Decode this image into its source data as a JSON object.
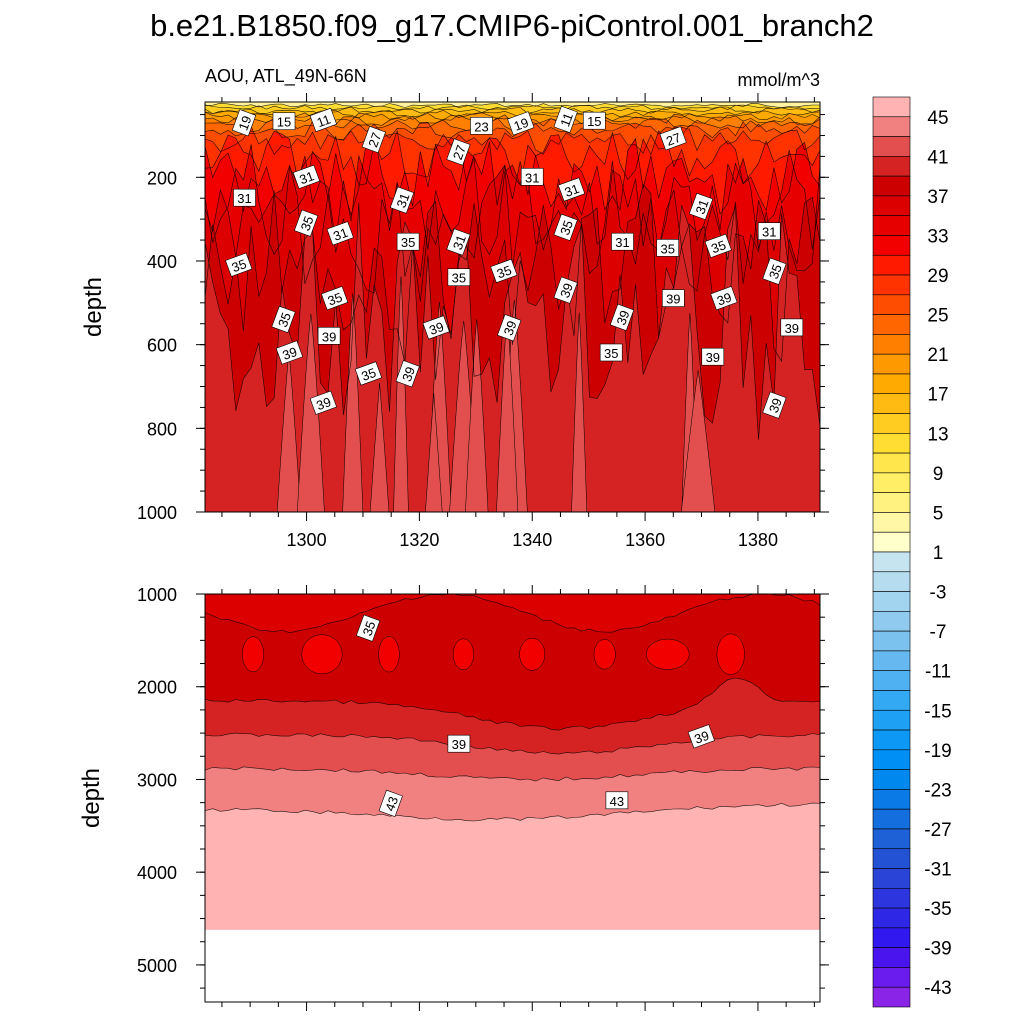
{
  "chart_data": [
    {
      "type": "heatmap",
      "title": "b.e21.B1850.f09_g17.CMIP6-piControl.001_branch2",
      "left_label": "AOU, ATL_49N-66N",
      "right_label": "mmol/m^3",
      "ylabel": "depth",
      "xlim": [
        1282,
        1391
      ],
      "ylim": [
        1000,
        20
      ],
      "x_ticks": [
        1300,
        1320,
        1340,
        1360,
        1380
      ],
      "x_tick_labels": [
        "1300",
        "1320",
        "1340",
        "1360",
        "1380"
      ],
      "y_ticks": [
        200,
        400,
        600,
        800,
        1000
      ],
      "y_tick_labels": [
        "200",
        "400",
        "600",
        "800",
        "1000"
      ],
      "contour_labels": [
        {
          "x": 1289,
          "y": 70,
          "text": "19"
        },
        {
          "x": 1296,
          "y": 67,
          "text": "15"
        },
        {
          "x": 1303,
          "y": 64,
          "text": "11"
        },
        {
          "x": 1312,
          "y": 110,
          "text": "27"
        },
        {
          "x": 1331,
          "y": 78,
          "text": "23"
        },
        {
          "x": 1338,
          "y": 72,
          "text": "19"
        },
        {
          "x": 1346,
          "y": 62,
          "text": "11"
        },
        {
          "x": 1351,
          "y": 66,
          "text": "15"
        },
        {
          "x": 1365,
          "y": 108,
          "text": "27"
        },
        {
          "x": 1327,
          "y": 140,
          "text": "27"
        },
        {
          "x": 1289,
          "y": 250,
          "text": "31"
        },
        {
          "x": 1300,
          "y": 200,
          "text": "31"
        },
        {
          "x": 1317,
          "y": 255,
          "text": "31"
        },
        {
          "x": 1340,
          "y": 200,
          "text": "31"
        },
        {
          "x": 1347,
          "y": 230,
          "text": "31"
        },
        {
          "x": 1370,
          "y": 270,
          "text": "31"
        },
        {
          "x": 1382,
          "y": 330,
          "text": "31"
        },
        {
          "x": 1306,
          "y": 335,
          "text": "31"
        },
        {
          "x": 1327,
          "y": 355,
          "text": "31"
        },
        {
          "x": 1356,
          "y": 355,
          "text": "31"
        },
        {
          "x": 1288,
          "y": 410,
          "text": "35"
        },
        {
          "x": 1300,
          "y": 310,
          "text": "35"
        },
        {
          "x": 1318,
          "y": 355,
          "text": "35"
        },
        {
          "x": 1305,
          "y": 490,
          "text": "35"
        },
        {
          "x": 1296,
          "y": 540,
          "text": "35"
        },
        {
          "x": 1327,
          "y": 440,
          "text": "35"
        },
        {
          "x": 1335,
          "y": 425,
          "text": "35"
        },
        {
          "x": 1346,
          "y": 320,
          "text": "35"
        },
        {
          "x": 1364,
          "y": 370,
          "text": "35"
        },
        {
          "x": 1373,
          "y": 365,
          "text": "35"
        },
        {
          "x": 1383,
          "y": 425,
          "text": "35"
        },
        {
          "x": 1354,
          "y": 620,
          "text": "35"
        },
        {
          "x": 1311,
          "y": 670,
          "text": "35"
        },
        {
          "x": 1346,
          "y": 470,
          "text": "39"
        },
        {
          "x": 1365,
          "y": 490,
          "text": "39"
        },
        {
          "x": 1374,
          "y": 490,
          "text": "39"
        },
        {
          "x": 1356,
          "y": 535,
          "text": "39"
        },
        {
          "x": 1386,
          "y": 560,
          "text": "39"
        },
        {
          "x": 1323,
          "y": 560,
          "text": "39"
        },
        {
          "x": 1336,
          "y": 560,
          "text": "39"
        },
        {
          "x": 1304,
          "y": 580,
          "text": "39"
        },
        {
          "x": 1297,
          "y": 620,
          "text": "39"
        },
        {
          "x": 1318,
          "y": 670,
          "text": "39"
        },
        {
          "x": 1372,
          "y": 630,
          "text": "39"
        },
        {
          "x": 1303,
          "y": 740,
          "text": "39"
        },
        {
          "x": 1383,
          "y": 745,
          "text": "39"
        }
      ]
    },
    {
      "type": "heatmap",
      "ylabel": "depth",
      "xlim": [
        1282,
        1391
      ],
      "ylim": [
        5400,
        1000
      ],
      "y_ticks": [
        1000,
        2000,
        3000,
        4000,
        5000
      ],
      "y_tick_labels": [
        "1000",
        "2000",
        "3000",
        "4000",
        "5000"
      ],
      "ocean_bottom_depth": 4620,
      "contour_labels": [
        {
          "x": 1311,
          "y": 1370,
          "text": "35"
        },
        {
          "x": 1327,
          "y": 2620,
          "text": "39"
        },
        {
          "x": 1370,
          "y": 2540,
          "text": "39"
        },
        {
          "x": 1315,
          "y": 3260,
          "text": "43"
        },
        {
          "x": 1355,
          "y": 3230,
          "text": "43"
        }
      ]
    }
  ],
  "colorbar": {
    "levels": [
      45,
      43,
      41,
      39,
      37,
      35,
      33,
      31,
      29,
      27,
      25,
      23,
      21,
      19,
      17,
      15,
      13,
      11,
      9,
      7,
      5,
      3,
      1,
      -1,
      -3,
      -5,
      -7,
      -9,
      -11,
      -13,
      -15,
      -17,
      -19,
      -21,
      -23,
      -25,
      -27,
      -29,
      -31,
      -33,
      -35,
      -37,
      -39,
      -41,
      -43,
      -45
    ],
    "labels": [
      "45",
      "41",
      "37",
      "33",
      "29",
      "25",
      "21",
      "17",
      "13",
      "9",
      "5",
      "1",
      "-3",
      "-7",
      "-11",
      "-15",
      "-19",
      "-23",
      "-27",
      "-31",
      "-35",
      "-39",
      "-43"
    ],
    "colors": [
      "#ffb3b3",
      "#f18080",
      "#e34e4e",
      "#d52323",
      "#cc0000",
      "#dd0000",
      "#e60000",
      "#f20000",
      "#ff1a00",
      "#ff3300",
      "#ff4d00",
      "#ff6600",
      "#ff8000",
      "#ff9900",
      "#ffaa00",
      "#ffbb11",
      "#ffcc22",
      "#ffdd33",
      "#ffe64d",
      "#ffee66",
      "#fff280",
      "#fff7a6",
      "#ffffcc",
      "#c6e3f0",
      "#b5dcef",
      "#a3d4ef",
      "#90cbef",
      "#7cc2ef",
      "#66b8f0",
      "#4fb0f2",
      "#33a8f3",
      "#1ea0f5",
      "#0d98f6",
      "#0090f5",
      "#0088ee",
      "#0a7be6",
      "#146edd",
      "#1e60d6",
      "#2452d4",
      "#2a44d8",
      "#2d36de",
      "#2e28e6",
      "#3018ee",
      "#4a14ee",
      "#6a1cee",
      "#8a24e6"
    ]
  }
}
